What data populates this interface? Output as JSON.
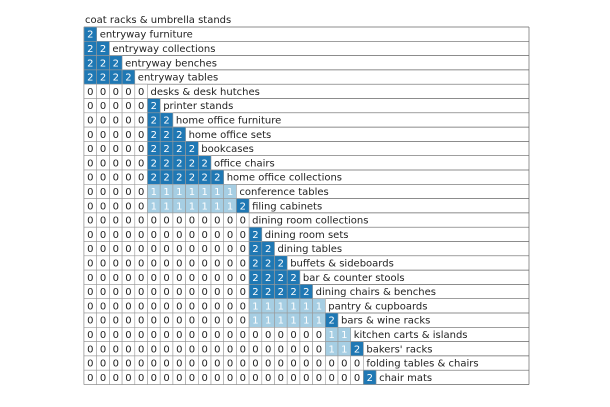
{
  "colors": {
    "value_2_fill": "#1f78b4",
    "value_1_fill": "#a6cee3",
    "value_0_fill": "#ffffff",
    "value_2_text": "#ffffff",
    "value_1_text": "#ffffff",
    "value_0_text": "#222222",
    "grid_line": "#9a9a9a",
    "row_line": "#666666"
  },
  "rows": [
    {
      "label": "coat racks & umbrella stands",
      "cells": []
    },
    {
      "label": "entryway furniture",
      "cells": [
        2
      ]
    },
    {
      "label": "entryway collections",
      "cells": [
        2,
        2
      ]
    },
    {
      "label": "entryway benches",
      "cells": [
        2,
        2,
        2
      ]
    },
    {
      "label": "entryway tables",
      "cells": [
        2,
        2,
        2,
        2
      ]
    },
    {
      "label": "desks & desk hutches",
      "cells": [
        0,
        0,
        0,
        0,
        0
      ]
    },
    {
      "label": "printer stands",
      "cells": [
        0,
        0,
        0,
        0,
        0,
        2
      ]
    },
    {
      "label": "home office furniture",
      "cells": [
        0,
        0,
        0,
        0,
        0,
        2,
        2
      ]
    },
    {
      "label": "home office sets",
      "cells": [
        0,
        0,
        0,
        0,
        0,
        2,
        2,
        2
      ]
    },
    {
      "label": "bookcases",
      "cells": [
        0,
        0,
        0,
        0,
        0,
        2,
        2,
        2,
        2
      ]
    },
    {
      "label": "office chairs",
      "cells": [
        0,
        0,
        0,
        0,
        0,
        2,
        2,
        2,
        2,
        2
      ]
    },
    {
      "label": "home office collections",
      "cells": [
        0,
        0,
        0,
        0,
        0,
        2,
        2,
        2,
        2,
        2,
        2
      ]
    },
    {
      "label": "conference tables",
      "cells": [
        0,
        0,
        0,
        0,
        0,
        1,
        1,
        1,
        1,
        1,
        1,
        1
      ]
    },
    {
      "label": "filing cabinets",
      "cells": [
        0,
        0,
        0,
        0,
        0,
        1,
        1,
        1,
        1,
        1,
        1,
        1,
        2
      ]
    },
    {
      "label": "dining room collections",
      "cells": [
        0,
        0,
        0,
        0,
        0,
        0,
        0,
        0,
        0,
        0,
        0,
        0,
        0
      ]
    },
    {
      "label": "dining room sets",
      "cells": [
        0,
        0,
        0,
        0,
        0,
        0,
        0,
        0,
        0,
        0,
        0,
        0,
        0,
        2
      ]
    },
    {
      "label": "dining tables",
      "cells": [
        0,
        0,
        0,
        0,
        0,
        0,
        0,
        0,
        0,
        0,
        0,
        0,
        0,
        2,
        2
      ]
    },
    {
      "label": "buffets & sideboards",
      "cells": [
        0,
        0,
        0,
        0,
        0,
        0,
        0,
        0,
        0,
        0,
        0,
        0,
        0,
        2,
        2,
        2
      ]
    },
    {
      "label": "bar & counter stools",
      "cells": [
        0,
        0,
        0,
        0,
        0,
        0,
        0,
        0,
        0,
        0,
        0,
        0,
        0,
        2,
        2,
        2,
        2
      ]
    },
    {
      "label": "dining chairs & benches",
      "cells": [
        0,
        0,
        0,
        0,
        0,
        0,
        0,
        0,
        0,
        0,
        0,
        0,
        0,
        2,
        2,
        2,
        2,
        2
      ]
    },
    {
      "label": "pantry & cupboards",
      "cells": [
        0,
        0,
        0,
        0,
        0,
        0,
        0,
        0,
        0,
        0,
        0,
        0,
        0,
        1,
        1,
        1,
        1,
        1,
        1
      ]
    },
    {
      "label": "bars & wine racks",
      "cells": [
        0,
        0,
        0,
        0,
        0,
        0,
        0,
        0,
        0,
        0,
        0,
        0,
        0,
        1,
        1,
        1,
        1,
        1,
        1,
        2
      ]
    },
    {
      "label": "kitchen carts & islands",
      "cells": [
        0,
        0,
        0,
        0,
        0,
        0,
        0,
        0,
        0,
        0,
        0,
        0,
        0,
        0,
        0,
        0,
        0,
        0,
        0,
        1,
        1
      ]
    },
    {
      "label": "bakers' racks",
      "cells": [
        0,
        0,
        0,
        0,
        0,
        0,
        0,
        0,
        0,
        0,
        0,
        0,
        0,
        0,
        0,
        0,
        0,
        0,
        0,
        1,
        1,
        2
      ]
    },
    {
      "label": "folding tables & chairs",
      "cells": [
        0,
        0,
        0,
        0,
        0,
        0,
        0,
        0,
        0,
        0,
        0,
        0,
        0,
        0,
        0,
        0,
        0,
        0,
        0,
        0,
        0,
        0
      ]
    },
    {
      "label": "chair mats",
      "cells": [
        0,
        0,
        0,
        0,
        0,
        0,
        0,
        0,
        0,
        0,
        0,
        0,
        0,
        0,
        0,
        0,
        0,
        0,
        0,
        0,
        0,
        0,
        2
      ]
    }
  ]
}
